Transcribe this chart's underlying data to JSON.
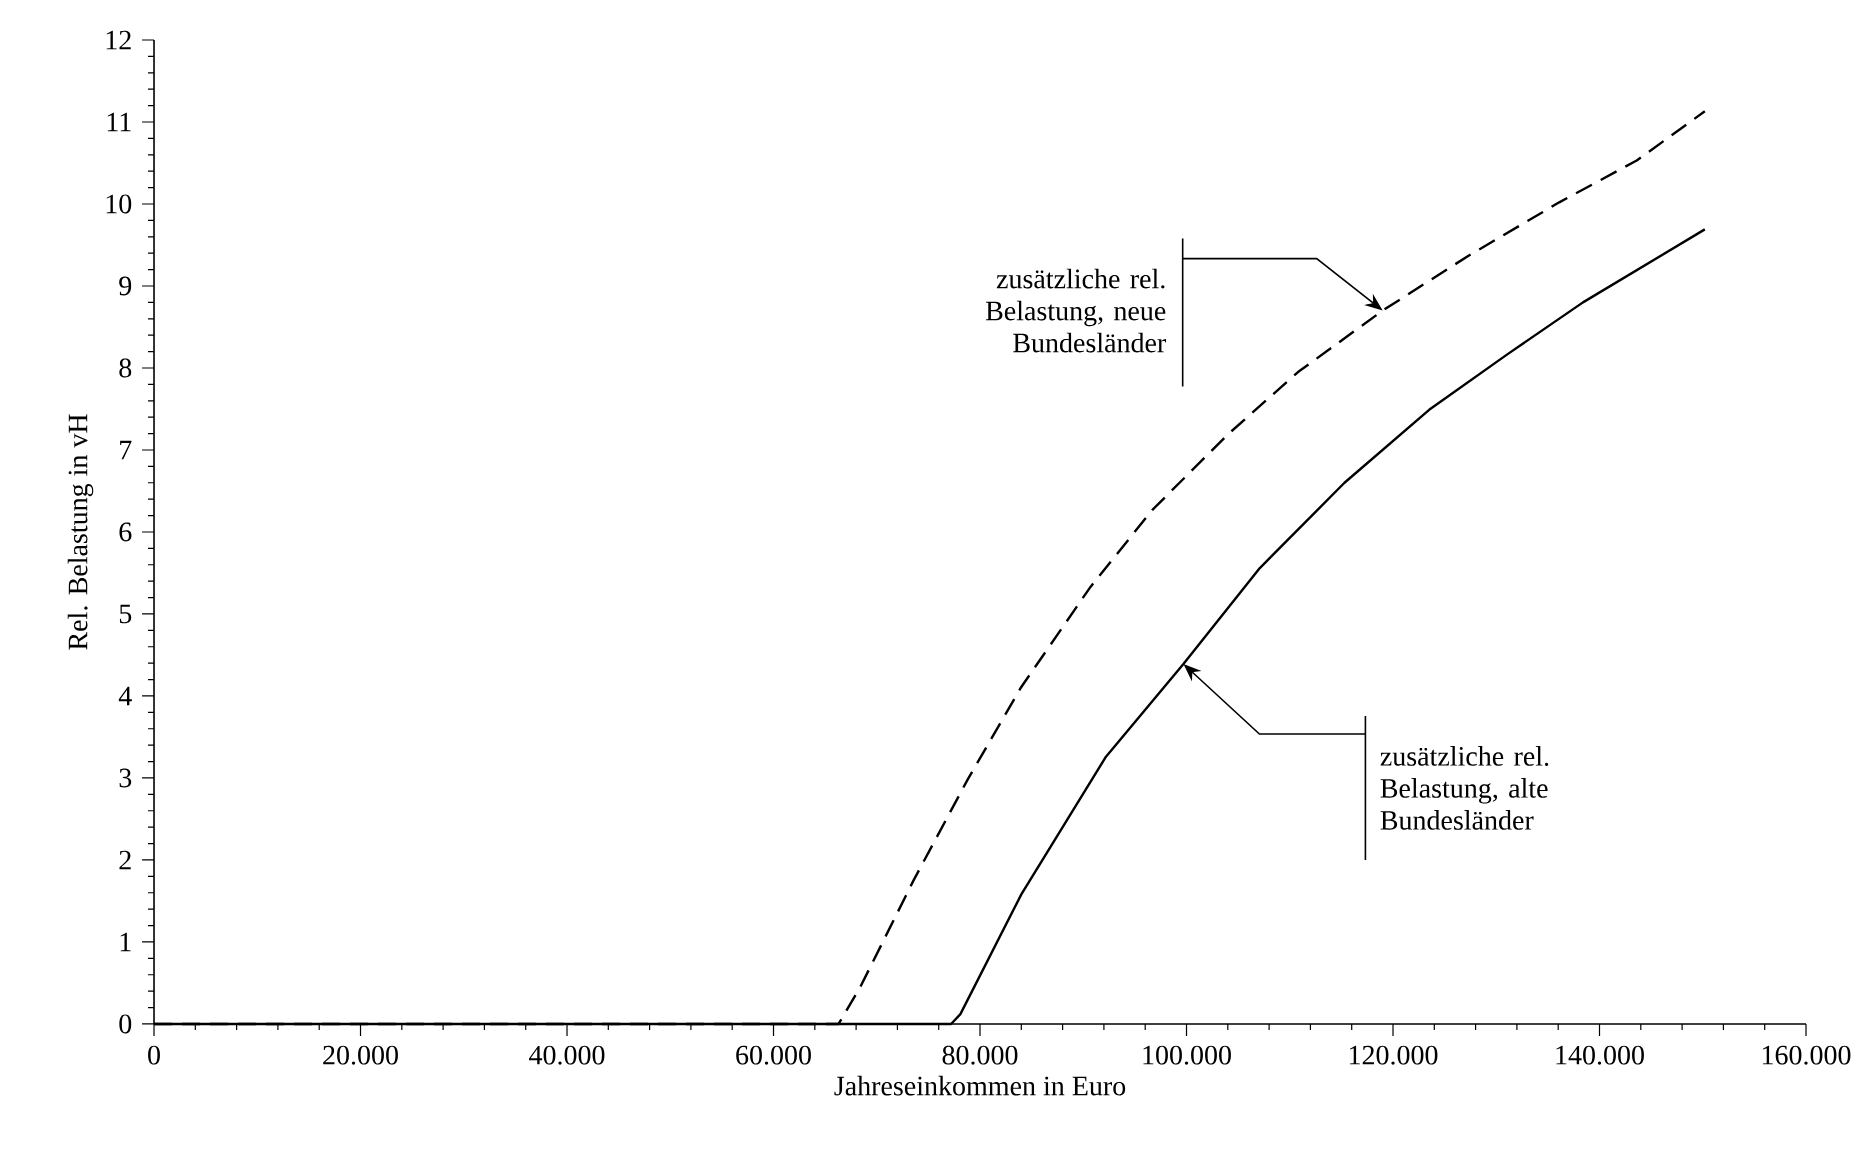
{
  "chart_data": {
    "type": "line",
    "xlabel": "Jahreseinkommen in Euro",
    "ylabel": "Rel. Belastung in vH",
    "xlim": [
      0,
      160000
    ],
    "ylim": [
      0,
      12
    ],
    "xticks": [
      0,
      {
        "value": 20000,
        "label": "20.000"
      },
      {
        "value": 40000,
        "label": "40.000"
      },
      {
        "value": 60000,
        "label": "60.000"
      },
      {
        "value": 80000,
        "label": "80.000"
      },
      {
        "value": 100000,
        "label": "100.000"
      },
      {
        "value": 120000,
        "label": "120.000"
      },
      {
        "value": 140000,
        "label": "140.000"
      },
      {
        "value": 160000,
        "label": "160.000"
      }
    ],
    "yticks": [
      0,
      1,
      2,
      3,
      4,
      5,
      6,
      7,
      8,
      9,
      10,
      11,
      12
    ],
    "marker": "none",
    "series": [
      {
        "color": "#000000",
        "line_style": "dashed",
        "x": [
          0,
          66300,
          68400,
          73600,
          78800,
          84000,
          90700,
          96700,
          104100,
          110800,
          119000,
          127200,
          136100,
          143600,
          150200
        ],
        "values": [
          0,
          0,
          0.45,
          1.76,
          2.98,
          4.11,
          5.33,
          6.27,
          7.2,
          7.95,
          8.7,
          9.36,
          10.02,
          10.53,
          11.13
        ]
      },
      {
        "color": "#000000",
        "line_style": "solid",
        "x": [
          0,
          77200,
          78100,
          84000,
          92200,
          99700,
          107100,
          115300,
          123500,
          131000,
          138400,
          150200
        ],
        "values": [
          0,
          0,
          0.12,
          1.58,
          3.26,
          4.39,
          5.56,
          6.6,
          7.49,
          8.16,
          8.8,
          9.69
        ]
      }
    ],
    "annotations": [
      {
        "text": "zusätzliche rel. Belastung, neue Bundesländer",
        "x": 119000,
        "y": 8.7
      },
      {
        "text": "zusätzliche rel. Belastung, alte Bundesländer",
        "x": 99700,
        "y": 4.39
      }
    ]
  }
}
